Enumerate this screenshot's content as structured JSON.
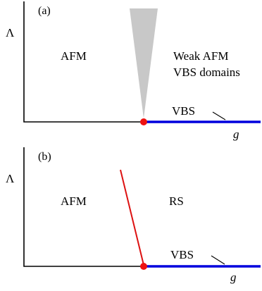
{
  "colors": {
    "axis": "#000000",
    "vbs_line": "#0000dd",
    "critical_point": "#ee1111",
    "phase_boundary": "#dd1111",
    "wedge": "#c8c8c8"
  },
  "panels": [
    {
      "tag": "(a)",
      "y_axis_label": "Λ",
      "x_axis_label": "g",
      "left_phase": "AFM",
      "right_phase_line1": "Weak AFM",
      "right_phase_line2": "VBS domains",
      "axis_phase": "VBS"
    },
    {
      "tag": "(b)",
      "y_axis_label": "Λ",
      "x_axis_label": "g",
      "left_phase": "AFM",
      "right_phase": "RS",
      "axis_phase": "VBS"
    }
  ]
}
